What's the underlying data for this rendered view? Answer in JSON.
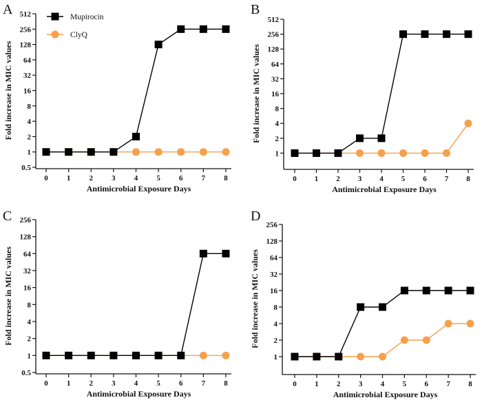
{
  "chart_data": [
    {
      "panel": "A",
      "type": "line",
      "xlabel": "Antimicrobial Exposure Days",
      "ylabel": "Fold increase in MIC values",
      "x": [
        0,
        1,
        2,
        3,
        4,
        5,
        6,
        7,
        8
      ],
      "y_scale": "log2",
      "ylim": [
        0.5,
        512
      ],
      "yticks": [
        "0.5",
        "1",
        "2",
        "4",
        "8",
        "16",
        "32",
        "64",
        "128",
        "256",
        "512"
      ],
      "legend": "top-left",
      "series": [
        {
          "name": "Mupirocin",
          "color": "#000000",
          "marker": "square",
          "values": [
            1,
            1,
            1,
            1,
            2,
            128,
            256,
            256,
            256
          ]
        },
        {
          "name": "ClyQ",
          "color": "#F7A04A",
          "marker": "circle",
          "values": [
            1,
            1,
            1,
            1,
            1,
            1,
            1,
            1,
            1
          ]
        }
      ]
    },
    {
      "panel": "B",
      "type": "line",
      "xlabel": "Antimicrobial Exposure Days",
      "ylabel": "Fold increase in MIC values",
      "x": [
        0,
        1,
        2,
        3,
        4,
        5,
        6,
        7,
        8
      ],
      "y_scale": "log2",
      "ylim": [
        0.5,
        512
      ],
      "yticks": [
        "1",
        "2",
        "4",
        "8",
        "16",
        "32",
        "64",
        "128",
        "256",
        "512"
      ],
      "series": [
        {
          "color": "#000000",
          "marker": "square",
          "values": [
            1,
            1,
            1,
            2,
            2,
            256,
            256,
            256,
            256
          ]
        },
        {
          "color": "#F7A04A",
          "marker": "circle",
          "values": [
            1,
            1,
            1,
            1,
            1,
            1,
            1,
            1,
            4
          ]
        }
      ]
    },
    {
      "panel": "C",
      "type": "line",
      "xlabel": "Antimicrobial Exposure Days",
      "ylabel": "Fold increase in MIC values",
      "x": [
        0,
        1,
        2,
        3,
        4,
        5,
        6,
        7,
        8
      ],
      "y_scale": "log2",
      "ylim": [
        0.5,
        256
      ],
      "yticks": [
        "0.5",
        "1",
        "2",
        "4",
        "8",
        "16",
        "32",
        "64",
        "128",
        "256"
      ],
      "series": [
        {
          "color": "#000000",
          "marker": "square",
          "values": [
            1,
            1,
            1,
            1,
            1,
            1,
            1,
            64,
            64
          ]
        },
        {
          "color": "#F7A04A",
          "marker": "circle",
          "values": [
            1,
            1,
            1,
            1,
            1,
            1,
            1,
            1,
            1
          ]
        }
      ]
    },
    {
      "panel": "D",
      "type": "line",
      "xlabel": "Antimicrobial Exposure Days",
      "ylabel": "Fold increase in MIC values",
      "x": [
        0,
        1,
        2,
        3,
        4,
        5,
        6,
        7,
        8
      ],
      "y_scale": "log2",
      "ylim": [
        0.5,
        256
      ],
      "yticks": [
        "1",
        "2",
        "4",
        "8",
        "16",
        "32",
        "64",
        "128",
        "256"
      ],
      "series": [
        {
          "color": "#000000",
          "marker": "square",
          "values": [
            1,
            1,
            1,
            8,
            8,
            16,
            16,
            16,
            16
          ]
        },
        {
          "color": "#F7A04A",
          "marker": "circle",
          "values": [
            1,
            1,
            1,
            1,
            1,
            2,
            2,
            4,
            4
          ]
        }
      ]
    }
  ]
}
